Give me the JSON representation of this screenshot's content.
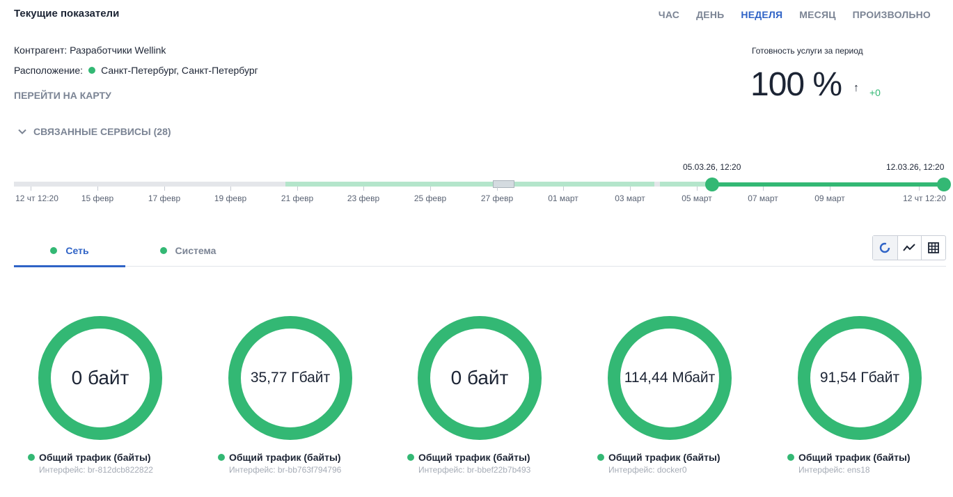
{
  "header": {
    "title": "Текущие показатели",
    "periods": [
      {
        "label": "ЧАС",
        "active": false
      },
      {
        "label": "ДЕНЬ",
        "active": false
      },
      {
        "label": "НЕДЕЛЯ",
        "active": true
      },
      {
        "label": "МЕСЯЦ",
        "active": false
      },
      {
        "label": "ПРОИЗВОЛЬНО",
        "active": false
      }
    ]
  },
  "info": {
    "counterparty_label": "Контрагент:",
    "counterparty_value": "Разработчики Wellink",
    "location_label": "Расположение:",
    "location_value": "Санкт-Петербург, Санкт-Петербург",
    "map_link": "ПЕРЕЙТИ НА КАРТУ"
  },
  "availability": {
    "label": "Готовность услуги за период",
    "value": "100 %",
    "arrow": "↑",
    "delta": "+0"
  },
  "related_services": {
    "label": "СВЯЗАННЫЕ СЕРВИСЫ (28)"
  },
  "timeline": {
    "range_start": "05.03.26, 12:20",
    "range_end": "12.03.26, 12:20",
    "ticks": [
      "12 чт 12:20",
      "15 февр",
      "17 февр",
      "19 февр",
      "21 февр",
      "23 февр",
      "25 февр",
      "27 февр",
      "01 март",
      "03 март",
      "05 март",
      "07 март",
      "09 март",
      "12 чт 12:20"
    ]
  },
  "tabs": [
    {
      "label": "Сеть",
      "active": true
    },
    {
      "label": "Система",
      "active": false
    }
  ],
  "view_switch": {
    "icons": [
      "donut-chart-icon",
      "line-chart-icon",
      "table-grid-icon"
    ],
    "active": "donut-chart-icon"
  },
  "colors": {
    "accent": "#2f63c6",
    "success": "#33b874",
    "muted": "#7b8494"
  },
  "metrics": [
    {
      "value": "0 байт",
      "title": "Общий трафик (байты)",
      "interface": "Интерфейс: br-812dcb822822"
    },
    {
      "value": "35,77 Гбайт",
      "title": "Общий трафик (байты)",
      "interface": "Интерфейс: br-bb763f794796"
    },
    {
      "value": "0 байт",
      "title": "Общий трафик (байты)",
      "interface": "Интерфейс: br-bbef22b7b493"
    },
    {
      "value": "114,44 Мбайт",
      "title": "Общий трафик (байты)",
      "interface": "Интерфейс: docker0"
    },
    {
      "value": "91,54 Гбайт",
      "title": "Общий трафик (байты)",
      "interface": "Интерфейс: ens18"
    }
  ]
}
